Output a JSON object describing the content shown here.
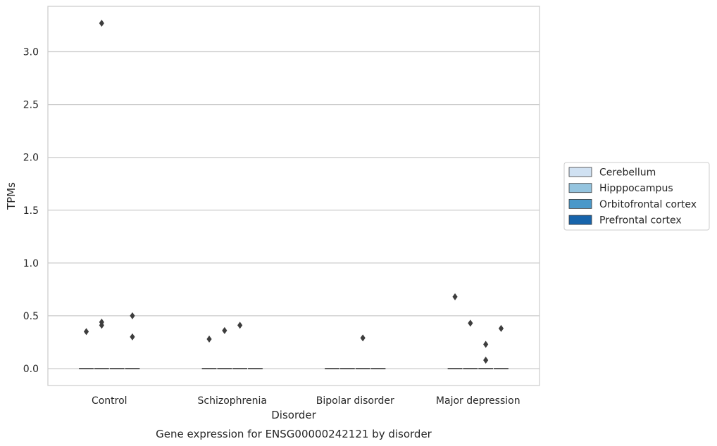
{
  "chart_data": {
    "type": "box",
    "title": "Gene expression for ENSG00000242121 by disorder",
    "xlabel": "Disorder",
    "ylabel": "TPMs",
    "categories": [
      "Control",
      "Schizophrenia",
      "Bipolar disorder",
      "Major depression"
    ],
    "ylim": [
      -0.16,
      3.43
    ],
    "yticks": [
      0.0,
      0.5,
      1.0,
      1.5,
      2.0,
      2.5,
      3.0
    ],
    "ytick_labels": [
      "0.0",
      "0.5",
      "1.0",
      "1.5",
      "2.0",
      "2.5",
      "3.0"
    ],
    "grid": "horizontal",
    "legend_position": "right",
    "series": [
      {
        "name": "Cerebellum",
        "color": "#d0e1f2",
        "median": [
          0,
          0,
          0,
          0
        ],
        "outliers": [
          [
            0.35
          ],
          [
            0.28
          ],
          [],
          [
            0.68
          ]
        ]
      },
      {
        "name": "Hipppocampus",
        "color": "#94c4df",
        "median": [
          0,
          0,
          0,
          0
        ],
        "outliers": [
          [
            0.41,
            0.44,
            3.27
          ],
          [
            0.36
          ],
          [],
          [
            0.43
          ]
        ]
      },
      {
        "name": "Orbitofrontal cortex",
        "color": "#4a98c9",
        "median": [
          0,
          0,
          0,
          0
        ],
        "outliers": [
          [],
          [
            0.41
          ],
          [
            0.29
          ],
          [
            0.08,
            0.23
          ]
        ]
      },
      {
        "name": "Prefrontal cortex",
        "color": "#1764ab",
        "median": [
          0,
          0,
          0,
          0
        ],
        "outliers": [
          [
            0.3,
            0.5
          ],
          [],
          [],
          [
            0.38
          ]
        ]
      }
    ]
  }
}
